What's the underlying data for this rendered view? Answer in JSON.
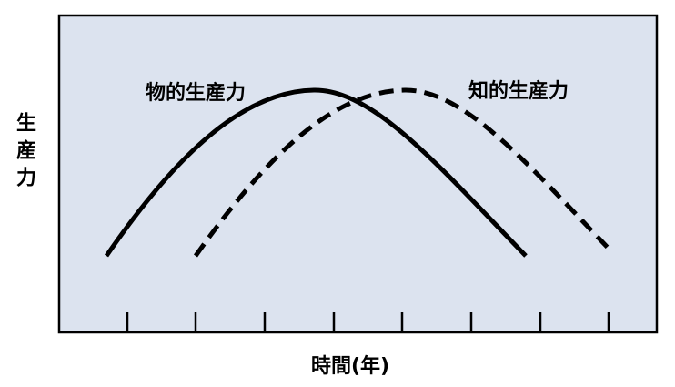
{
  "curves": [
    {
      "label": "物的生産力"
    },
    {
      "label": "知的生産力"
    }
  ],
  "axes": {
    "y_label": "生産力",
    "x_label": "時間(年)"
  }
}
